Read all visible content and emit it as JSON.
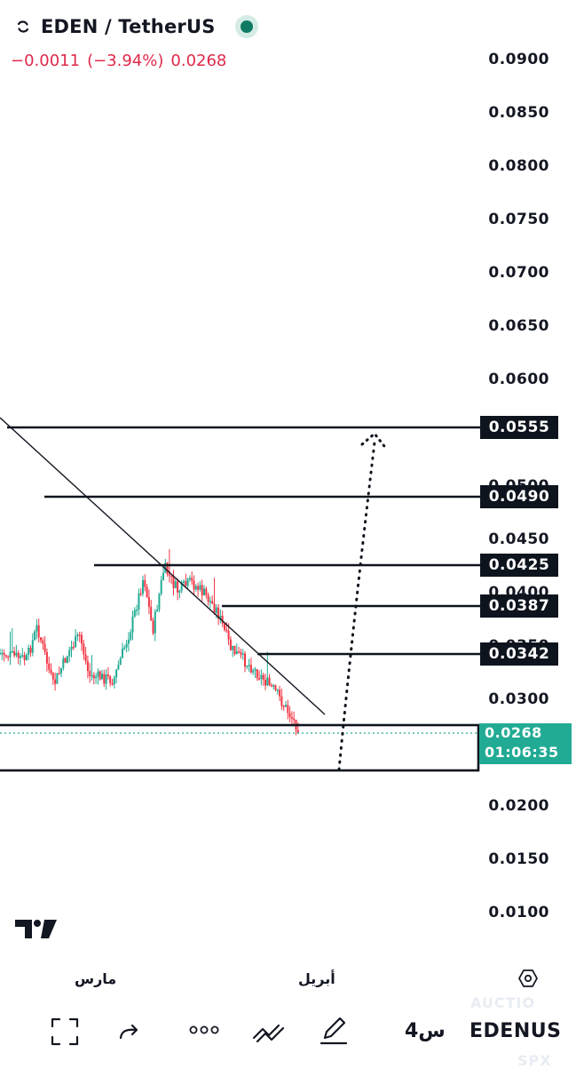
{
  "header": {
    "symbol": "EDEN / TetherUS",
    "change": "−0.0011",
    "change_pct": "(−3.94%)",
    "last": "0.0268"
  },
  "price_axis": {
    "labels": [
      "0.0900",
      "0.0850",
      "0.0800",
      "0.0750",
      "0.0700",
      "0.0650",
      "0.0600",
      "0.0500",
      "0.0450",
      "0.0400",
      "0.0350",
      "0.0300",
      "0.0200",
      "0.0150",
      "0.0100"
    ]
  },
  "levels": [
    "0.0555",
    "0.0490",
    "0.0425",
    "0.0387",
    "0.0342"
  ],
  "current_price": {
    "price": "0.0268",
    "countdown": "01:06:35",
    "color": "#22ab94"
  },
  "time_axis": {
    "months": [
      "مارس",
      "أبريل"
    ]
  },
  "toolbar": {
    "symbol": "EDENUS",
    "interval": "4س",
    "icons": [
      "fullscreen-icon",
      "redo-icon",
      "more-icon",
      "indicators-icon",
      "brush-icon",
      "settings-icon"
    ]
  },
  "watermark": {
    "auction": "AUCTIO",
    "spx": "SPX"
  },
  "colors": {
    "up": "#22ab94",
    "down": "#f23645",
    "level_line": "#0e141d"
  }
}
